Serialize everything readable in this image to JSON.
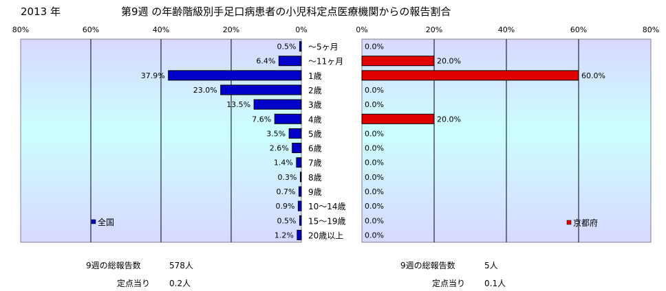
{
  "header": {
    "year": "2013 年",
    "title": "第9週 の年齢階級別手足口病患者の小児科定点医療機関からの報告割合"
  },
  "chart_data": [
    {
      "type": "bar",
      "orientation": "horizontal",
      "direction": "reversed",
      "xlim": [
        0,
        80
      ],
      "ticks": [
        "80%",
        "60%",
        "40%",
        "20%",
        "0%"
      ],
      "color": "#0000c8",
      "grid": true,
      "legend_position": "bottom-left",
      "categories": [
        "～5ヶ月",
        "～11ヶ月",
        "1歳",
        "2歳",
        "3歳",
        "4歳",
        "5歳",
        "6歳",
        "7歳",
        "8歳",
        "9歳",
        "10～14歳",
        "15～19歳",
        "20歳以上"
      ],
      "series": [
        {
          "name": "全国",
          "values": [
            0.5,
            6.4,
            37.9,
            23.0,
            13.5,
            7.6,
            3.5,
            2.6,
            1.4,
            0.3,
            0.7,
            0.9,
            0.5,
            1.2
          ]
        }
      ],
      "value_labels": [
        "0.5%",
        "6.4%",
        "37.9%",
        "23.0%",
        "13.5%",
        "7.6%",
        "3.5%",
        "2.6%",
        "1.4%",
        "0.3%",
        "0.7%",
        "0.9%",
        "0.5%",
        "1.2%"
      ]
    },
    {
      "type": "bar",
      "orientation": "horizontal",
      "xlim": [
        0,
        80
      ],
      "ticks": [
        "0%",
        "20%",
        "40%",
        "60%",
        "80%"
      ],
      "color": "#e00000",
      "grid": true,
      "legend_position": "bottom-right",
      "categories": [
        "～5ヶ月",
        "～11ヶ月",
        "1歳",
        "2歳",
        "3歳",
        "4歳",
        "5歳",
        "6歳",
        "7歳",
        "8歳",
        "9歳",
        "10～14歳",
        "15～19歳",
        "20歳以上"
      ],
      "series": [
        {
          "name": "京都府",
          "values": [
            0,
            20,
            60,
            0,
            0,
            20,
            0,
            0,
            0,
            0,
            0,
            0,
            0,
            0
          ]
        }
      ],
      "value_labels": [
        "0.0%",
        "20.0%",
        "60.0%",
        "0.0%",
        "0.0%",
        "20.0%",
        "0.0%",
        "0.0%",
        "0.0%",
        "0.0%",
        "0.0%",
        "0.0%",
        "0.0%",
        "0.0%"
      ]
    }
  ],
  "summary": {
    "left": {
      "total_label": "9週の総報告数",
      "total_value": "578人",
      "per_label": "定点当り",
      "per_value": "0.2人"
    },
    "right": {
      "total_label": "9週の総報告数",
      "total_value": "5人",
      "per_label": "定点当り",
      "per_value": "0.1人"
    }
  }
}
